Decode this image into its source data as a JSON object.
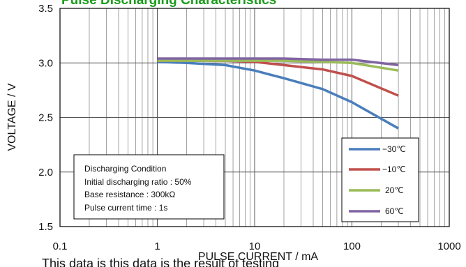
{
  "chart_data": {
    "type": "line",
    "title": "Pulse Discharging Characteristics",
    "xlabel": "PULSE CURRENT / mA",
    "ylabel": "VOLTAGE / V",
    "x_scale": "log",
    "xlim": [
      0.1,
      1000
    ],
    "ylim": [
      1.5,
      3.5
    ],
    "x_tick_labels": [
      "0.1",
      "1",
      "10",
      "100",
      "1000"
    ],
    "y_tick_labels": [
      "1.5",
      "2.0",
      "2.5",
      "3.0",
      "3.5"
    ],
    "grid": true,
    "legend_position": "bottom-right",
    "series": [
      {
        "name": "−30℃",
        "color": "#4a7ebb",
        "x": [
          1,
          2,
          5,
          10,
          20,
          50,
          100,
          300
        ],
        "y": [
          3.01,
          3.0,
          2.98,
          2.93,
          2.86,
          2.76,
          2.64,
          2.4
        ]
      },
      {
        "name": "−10℃",
        "color": "#c0504d",
        "x": [
          1,
          2,
          5,
          10,
          20,
          50,
          100,
          300
        ],
        "y": [
          3.02,
          3.02,
          3.02,
          3.01,
          2.98,
          2.94,
          2.88,
          2.7
        ]
      },
      {
        "name": "20℃",
        "color": "#9bbb59",
        "x": [
          1,
          2,
          5,
          10,
          20,
          50,
          100,
          300
        ],
        "y": [
          3.02,
          3.02,
          3.02,
          3.02,
          3.02,
          3.01,
          3.0,
          2.93
        ]
      },
      {
        "name": "60℃",
        "color": "#8064a2",
        "x": [
          1,
          2,
          5,
          10,
          20,
          50,
          100,
          300
        ],
        "y": [
          3.04,
          3.04,
          3.04,
          3.04,
          3.04,
          3.03,
          3.03,
          2.98
        ]
      }
    ],
    "annotation": {
      "lines": [
        "Discharging Condition",
        "Initial discharging ratio : 50%",
        "Base resistance : 300kΩ",
        "Pulse current time : 1s"
      ]
    }
  },
  "footer_text": "This data is this data is the result of testing"
}
